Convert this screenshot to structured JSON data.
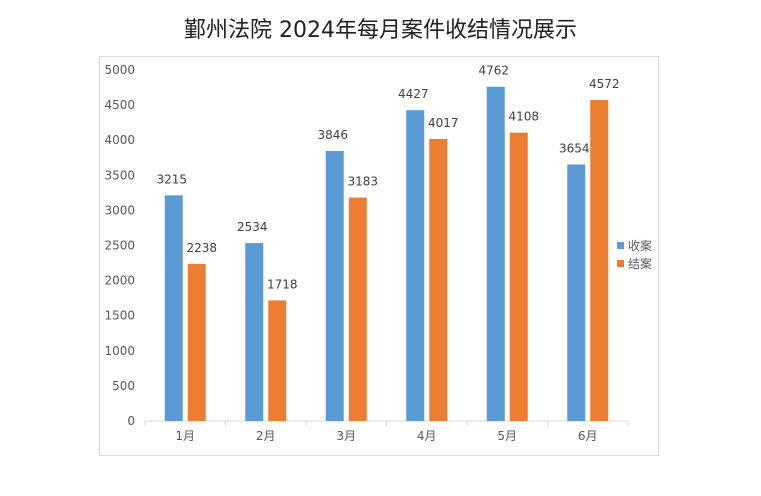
{
  "chart_data": {
    "type": "bar",
    "title": "鄞州法院 2024年每月案件收结情况展示",
    "categories": [
      "1月",
      "2月",
      "3月",
      "4月",
      "5月",
      "6月"
    ],
    "series": [
      {
        "name": "收案",
        "color": "#5b9bd5",
        "values": [
          3215,
          2534,
          3846,
          4427,
          4762,
          3654
        ]
      },
      {
        "name": "结案",
        "color": "#ed7d31",
        "values": [
          2238,
          1718,
          3183,
          4017,
          4108,
          4572
        ]
      }
    ],
    "ylim": [
      0,
      5000
    ],
    "yticks": [
      0,
      500,
      1000,
      1500,
      2000,
      2500,
      3000,
      3500,
      4000,
      4500,
      5000
    ],
    "grid": false,
    "legend": "right"
  }
}
